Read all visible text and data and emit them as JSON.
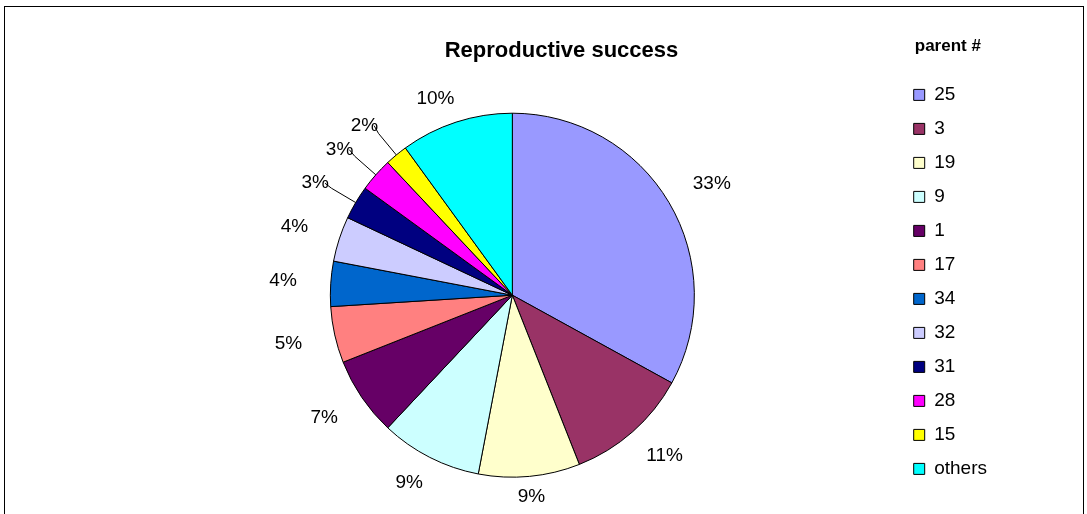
{
  "chart_data": {
    "type": "pie",
    "title": "Reproductive success",
    "legend_title": "parent #",
    "legend": "right",
    "categories": [
      "25",
      "3",
      "19",
      "9",
      "1",
      "17",
      "34",
      "32",
      "31",
      "28",
      "15",
      "others"
    ],
    "values": [
      33,
      11,
      9,
      9,
      7,
      5,
      4,
      4,
      3,
      3,
      2,
      10
    ],
    "value_labels": [
      "33%",
      "11%",
      "9%",
      "9%",
      "7%",
      "5%",
      "4%",
      "4%",
      "3%",
      "3%",
      "2%",
      "10%"
    ],
    "colors": [
      "#9999ff",
      "#993366",
      "#ffffcc",
      "#ccffff",
      "#660066",
      "#ff8080",
      "#0066cc",
      "#ccccff",
      "#000080",
      "#ff00ff",
      "#ffff00",
      "#00ffff"
    ]
  }
}
